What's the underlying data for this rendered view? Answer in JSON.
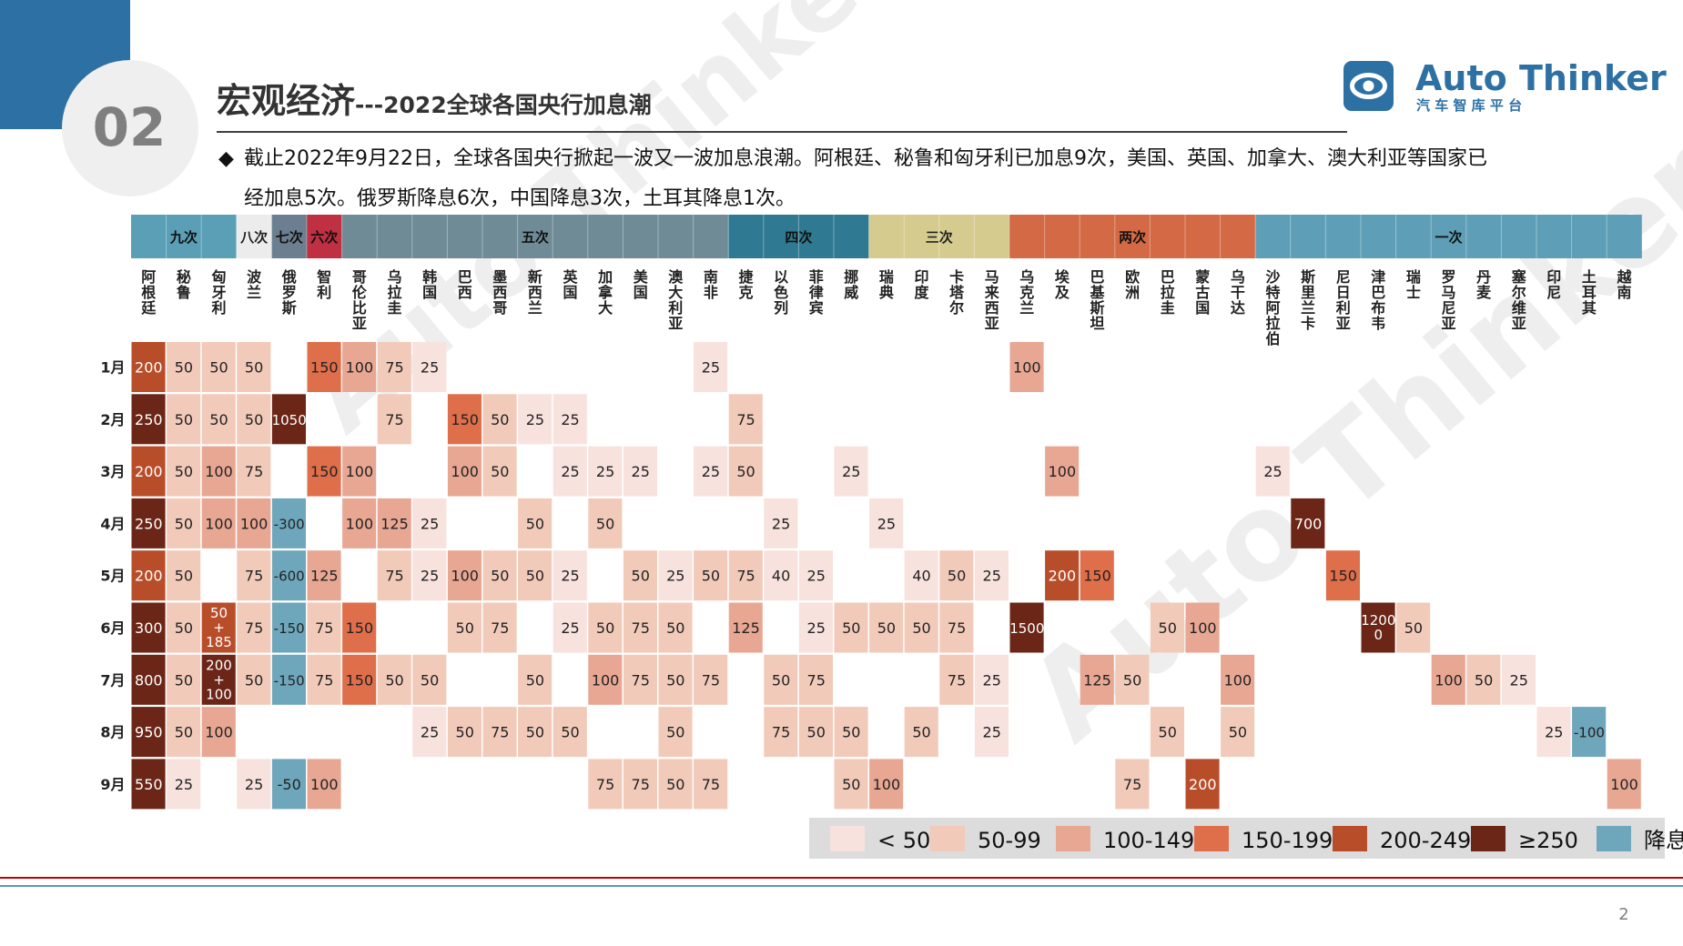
{
  "header": {
    "section_number": "02",
    "title_main": "宏观经济",
    "title_sub": "---2022全球各国央行加息潮",
    "brand_name": "Auto Thinker",
    "brand_tagline": "汽 车 智 库 平 台",
    "watermark": "Auto Thinker"
  },
  "summary": {
    "bullet": "◆",
    "line1": "截止2022年9月22日，全球各国央行掀起一波又一波加息浪潮。阿根廷、秘鲁和匈牙利已加息9次，美国、英国、加拿大、澳大利亚等国家已",
    "line2": "经加息5次。俄罗斯降息6次，中国降息3次，土耳其降息1次。"
  },
  "page_number": "2",
  "colors": {
    "banner_blue": "#2d71a4",
    "lt50": "#f8e2de",
    "c50_99": "#f2cab9",
    "c100_149": "#e8a793",
    "c150_199": "#df6e4b",
    "c200_249": "#b84d2a",
    "ge250": "#6b2617",
    "cut": "#6ea7bc",
    "rule_red": "#c00000",
    "rule_blue": "#2d71a4"
  },
  "chart_data": {
    "type": "heatmap",
    "title": "",
    "groups": [
      {
        "label": "九次",
        "start": 0,
        "span": 3,
        "color": "#5a9fb6"
      },
      {
        "label": "八次",
        "start": 3,
        "span": 1,
        "color": "#ececec"
      },
      {
        "label": "七次",
        "start": 4,
        "span": 1,
        "color": "#6c7f90"
      },
      {
        "label": "六次",
        "start": 5,
        "span": 1,
        "color": "#c03043"
      },
      {
        "label": "五次",
        "start": 6,
        "span": 11,
        "color": "#6f8c96"
      },
      {
        "label": "四次",
        "start": 17,
        "span": 4,
        "color": "#2f7a92"
      },
      {
        "label": "三次",
        "start": 21,
        "span": 4,
        "color": "#d6cb8f"
      },
      {
        "label": "两次",
        "start": 25,
        "span": 7,
        "color": "#d46a45"
      },
      {
        "label": "一次",
        "start": 32,
        "span": 11,
        "color": "#5e9fb7"
      }
    ],
    "countries": [
      "阿根廷",
      "秘鲁",
      "匈牙利",
      "波兰",
      "俄罗斯",
      "智利",
      "哥伦比亚",
      "乌拉圭",
      "韩国",
      "巴西",
      "墨西哥",
      "新西兰",
      "英国",
      "加拿大",
      "美国",
      "澳大利亚",
      "南非",
      "捷克",
      "以色列",
      "菲律宾",
      "挪威",
      "瑞典",
      "印度",
      "卡塔尔",
      "马来西亚",
      "乌克兰",
      "埃及",
      "巴基斯坦",
      "欧洲",
      "巴拉圭",
      "蒙古国",
      "乌干达",
      "沙特阿拉伯",
      "斯里兰卡",
      "尼日利亚",
      "津巴布韦",
      "瑞士",
      "罗马尼亚",
      "丹麦",
      "塞尔维亚",
      "印尼",
      "土耳其",
      "越南"
    ],
    "months": [
      "1月",
      "2月",
      "3月",
      "4月",
      "5月",
      "6月",
      "7月",
      "8月",
      "9月"
    ],
    "cells": [
      {
        "m": 0,
        "c": 0,
        "v": "200"
      },
      {
        "m": 0,
        "c": 1,
        "v": "50"
      },
      {
        "m": 0,
        "c": 2,
        "v": "50"
      },
      {
        "m": 0,
        "c": 3,
        "v": "50"
      },
      {
        "m": 0,
        "c": 5,
        "v": "150"
      },
      {
        "m": 0,
        "c": 6,
        "v": "100"
      },
      {
        "m": 0,
        "c": 7,
        "v": "75"
      },
      {
        "m": 0,
        "c": 8,
        "v": "25"
      },
      {
        "m": 0,
        "c": 16,
        "v": "25"
      },
      {
        "m": 0,
        "c": 25,
        "v": "100"
      },
      {
        "m": 1,
        "c": 0,
        "v": "250"
      },
      {
        "m": 1,
        "c": 1,
        "v": "50"
      },
      {
        "m": 1,
        "c": 2,
        "v": "50"
      },
      {
        "m": 1,
        "c": 3,
        "v": "50"
      },
      {
        "m": 1,
        "c": 4,
        "v": "1050"
      },
      {
        "m": 1,
        "c": 7,
        "v": "75"
      },
      {
        "m": 1,
        "c": 9,
        "v": "150"
      },
      {
        "m": 1,
        "c": 10,
        "v": "50"
      },
      {
        "m": 1,
        "c": 11,
        "v": "25"
      },
      {
        "m": 1,
        "c": 12,
        "v": "25"
      },
      {
        "m": 1,
        "c": 17,
        "v": "75"
      },
      {
        "m": 2,
        "c": 0,
        "v": "200"
      },
      {
        "m": 2,
        "c": 1,
        "v": "50"
      },
      {
        "m": 2,
        "c": 2,
        "v": "100"
      },
      {
        "m": 2,
        "c": 3,
        "v": "75"
      },
      {
        "m": 2,
        "c": 5,
        "v": "150"
      },
      {
        "m": 2,
        "c": 6,
        "v": "100"
      },
      {
        "m": 2,
        "c": 9,
        "v": "100"
      },
      {
        "m": 2,
        "c": 10,
        "v": "50"
      },
      {
        "m": 2,
        "c": 12,
        "v": "25"
      },
      {
        "m": 2,
        "c": 13,
        "v": "25"
      },
      {
        "m": 2,
        "c": 14,
        "v": "25"
      },
      {
        "m": 2,
        "c": 16,
        "v": "25"
      },
      {
        "m": 2,
        "c": 17,
        "v": "50"
      },
      {
        "m": 2,
        "c": 20,
        "v": "25"
      },
      {
        "m": 2,
        "c": 26,
        "v": "100"
      },
      {
        "m": 2,
        "c": 32,
        "v": "25"
      },
      {
        "m": 3,
        "c": 0,
        "v": "250"
      },
      {
        "m": 3,
        "c": 1,
        "v": "50"
      },
      {
        "m": 3,
        "c": 2,
        "v": "100"
      },
      {
        "m": 3,
        "c": 3,
        "v": "100"
      },
      {
        "m": 3,
        "c": 4,
        "v": "-300"
      },
      {
        "m": 3,
        "c": 6,
        "v": "100"
      },
      {
        "m": 3,
        "c": 7,
        "v": "125"
      },
      {
        "m": 3,
        "c": 8,
        "v": "25"
      },
      {
        "m": 3,
        "c": 11,
        "v": "50"
      },
      {
        "m": 3,
        "c": 13,
        "v": "50"
      },
      {
        "m": 3,
        "c": 18,
        "v": "25"
      },
      {
        "m": 3,
        "c": 21,
        "v": "25"
      },
      {
        "m": 3,
        "c": 33,
        "v": "700"
      },
      {
        "m": 4,
        "c": 0,
        "v": "200"
      },
      {
        "m": 4,
        "c": 1,
        "v": "50"
      },
      {
        "m": 4,
        "c": 3,
        "v": "75"
      },
      {
        "m": 4,
        "c": 4,
        "v": "-600"
      },
      {
        "m": 4,
        "c": 5,
        "v": "125"
      },
      {
        "m": 4,
        "c": 7,
        "v": "75"
      },
      {
        "m": 4,
        "c": 8,
        "v": "25"
      },
      {
        "m": 4,
        "c": 9,
        "v": "100"
      },
      {
        "m": 4,
        "c": 10,
        "v": "50"
      },
      {
        "m": 4,
        "c": 11,
        "v": "50"
      },
      {
        "m": 4,
        "c": 12,
        "v": "25"
      },
      {
        "m": 4,
        "c": 14,
        "v": "50"
      },
      {
        "m": 4,
        "c": 15,
        "v": "25"
      },
      {
        "m": 4,
        "c": 16,
        "v": "50"
      },
      {
        "m": 4,
        "c": 17,
        "v": "75"
      },
      {
        "m": 4,
        "c": 18,
        "v": "40"
      },
      {
        "m": 4,
        "c": 19,
        "v": "25"
      },
      {
        "m": 4,
        "c": 22,
        "v": "40"
      },
      {
        "m": 4,
        "c": 23,
        "v": "50"
      },
      {
        "m": 4,
        "c": 24,
        "v": "25"
      },
      {
        "m": 4,
        "c": 26,
        "v": "200"
      },
      {
        "m": 4,
        "c": 27,
        "v": "150"
      },
      {
        "m": 4,
        "c": 34,
        "v": "150"
      },
      {
        "m": 5,
        "c": 0,
        "v": "300"
      },
      {
        "m": 5,
        "c": 1,
        "v": "50"
      },
      {
        "m": 5,
        "c": 2,
        "v": "50+185",
        "lines": [
          "50",
          "+",
          "185"
        ],
        "n": 235
      },
      {
        "m": 5,
        "c": 3,
        "v": "75"
      },
      {
        "m": 5,
        "c": 4,
        "v": "-150"
      },
      {
        "m": 5,
        "c": 5,
        "v": "75"
      },
      {
        "m": 5,
        "c": 6,
        "v": "150"
      },
      {
        "m": 5,
        "c": 9,
        "v": "50"
      },
      {
        "m": 5,
        "c": 10,
        "v": "75"
      },
      {
        "m": 5,
        "c": 12,
        "v": "25"
      },
      {
        "m": 5,
        "c": 13,
        "v": "50"
      },
      {
        "m": 5,
        "c": 14,
        "v": "75"
      },
      {
        "m": 5,
        "c": 15,
        "v": "50"
      },
      {
        "m": 5,
        "c": 17,
        "v": "125"
      },
      {
        "m": 5,
        "c": 19,
        "v": "25"
      },
      {
        "m": 5,
        "c": 20,
        "v": "50"
      },
      {
        "m": 5,
        "c": 21,
        "v": "50"
      },
      {
        "m": 5,
        "c": 22,
        "v": "50"
      },
      {
        "m": 5,
        "c": 23,
        "v": "75"
      },
      {
        "m": 5,
        "c": 25,
        "v": "1500"
      },
      {
        "m": 5,
        "c": 29,
        "v": "50"
      },
      {
        "m": 5,
        "c": 30,
        "v": "100"
      },
      {
        "m": 5,
        "c": 35,
        "v": "12000",
        "lines": [
          "1200",
          "0"
        ]
      },
      {
        "m": 5,
        "c": 36,
        "v": "50"
      },
      {
        "m": 6,
        "c": 0,
        "v": "800"
      },
      {
        "m": 6,
        "c": 1,
        "v": "50"
      },
      {
        "m": 6,
        "c": 2,
        "v": "200+100",
        "lines": [
          "200",
          "+",
          "100"
        ],
        "n": 300
      },
      {
        "m": 6,
        "c": 3,
        "v": "50"
      },
      {
        "m": 6,
        "c": 4,
        "v": "-150"
      },
      {
        "m": 6,
        "c": 5,
        "v": "75"
      },
      {
        "m": 6,
        "c": 6,
        "v": "150"
      },
      {
        "m": 6,
        "c": 7,
        "v": "50"
      },
      {
        "m": 6,
        "c": 8,
        "v": "50"
      },
      {
        "m": 6,
        "c": 11,
        "v": "50"
      },
      {
        "m": 6,
        "c": 13,
        "v": "100"
      },
      {
        "m": 6,
        "c": 14,
        "v": "75"
      },
      {
        "m": 6,
        "c": 15,
        "v": "50"
      },
      {
        "m": 6,
        "c": 16,
        "v": "75"
      },
      {
        "m": 6,
        "c": 18,
        "v": "50"
      },
      {
        "m": 6,
        "c": 19,
        "v": "75"
      },
      {
        "m": 6,
        "c": 23,
        "v": "75"
      },
      {
        "m": 6,
        "c": 24,
        "v": "25"
      },
      {
        "m": 6,
        "c": 27,
        "v": "125"
      },
      {
        "m": 6,
        "c": 28,
        "v": "50"
      },
      {
        "m": 6,
        "c": 31,
        "v": "100"
      },
      {
        "m": 6,
        "c": 37,
        "v": "100"
      },
      {
        "m": 6,
        "c": 38,
        "v": "50"
      },
      {
        "m": 6,
        "c": 39,
        "v": "25"
      },
      {
        "m": 7,
        "c": 0,
        "v": "950"
      },
      {
        "m": 7,
        "c": 1,
        "v": "50"
      },
      {
        "m": 7,
        "c": 2,
        "v": "100"
      },
      {
        "m": 7,
        "c": 8,
        "v": "25"
      },
      {
        "m": 7,
        "c": 9,
        "v": "50"
      },
      {
        "m": 7,
        "c": 10,
        "v": "75"
      },
      {
        "m": 7,
        "c": 11,
        "v": "50"
      },
      {
        "m": 7,
        "c": 12,
        "v": "50"
      },
      {
        "m": 7,
        "c": 15,
        "v": "50"
      },
      {
        "m": 7,
        "c": 18,
        "v": "75"
      },
      {
        "m": 7,
        "c": 19,
        "v": "50"
      },
      {
        "m": 7,
        "c": 20,
        "v": "50"
      },
      {
        "m": 7,
        "c": 22,
        "v": "50"
      },
      {
        "m": 7,
        "c": 24,
        "v": "25"
      },
      {
        "m": 7,
        "c": 29,
        "v": "50"
      },
      {
        "m": 7,
        "c": 31,
        "v": "50"
      },
      {
        "m": 7,
        "c": 40,
        "v": "25"
      },
      {
        "m": 7,
        "c": 41,
        "v": "-100"
      },
      {
        "m": 8,
        "c": 0,
        "v": "550"
      },
      {
        "m": 8,
        "c": 1,
        "v": "25"
      },
      {
        "m": 8,
        "c": 3,
        "v": "25"
      },
      {
        "m": 8,
        "c": 4,
        "v": "-50"
      },
      {
        "m": 8,
        "c": 5,
        "v": "100"
      },
      {
        "m": 8,
        "c": 13,
        "v": "75"
      },
      {
        "m": 8,
        "c": 14,
        "v": "75"
      },
      {
        "m": 8,
        "c": 15,
        "v": "50"
      },
      {
        "m": 8,
        "c": 16,
        "v": "75"
      },
      {
        "m": 8,
        "c": 20,
        "v": "50"
      },
      {
        "m": 8,
        "c": 21,
        "v": "100"
      },
      {
        "m": 8,
        "c": 28,
        "v": "75"
      },
      {
        "m": 8,
        "c": 30,
        "v": "200"
      },
      {
        "m": 8,
        "c": 42,
        "v": "100"
      }
    ],
    "legend": [
      {
        "label": "< 50",
        "color": "#f8e2de"
      },
      {
        "label": "50-99",
        "color": "#f2cab9"
      },
      {
        "label": "100-149",
        "color": "#e8a793"
      },
      {
        "label": "150-199",
        "color": "#df6e4b"
      },
      {
        "label": "200-249",
        "color": "#b84d2a"
      },
      {
        "label": "≥250",
        "color": "#6b2617"
      },
      {
        "label": "降息",
        "color": "#6ea7bc"
      }
    ]
  }
}
